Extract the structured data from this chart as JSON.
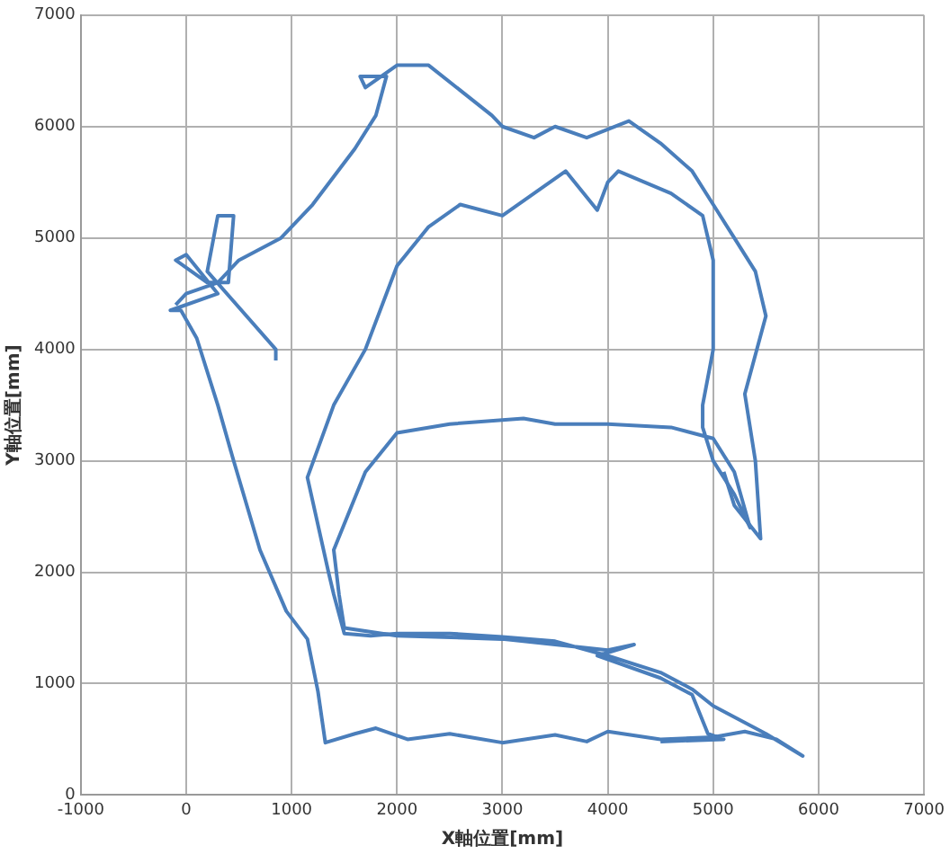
{
  "chart_data": {
    "type": "line",
    "xlabel": "X軸位置[mm]",
    "ylabel": "Y軸位置[mm]",
    "xlim": [
      -1000,
      7000
    ],
    "xticks": [
      -1000,
      0,
      1000,
      2000,
      3000,
      4000,
      5000,
      6000,
      7000
    ],
    "ylim": [
      0,
      7000
    ],
    "yticks": [
      0,
      1000,
      2000,
      3000,
      4000,
      5000,
      6000,
      7000
    ],
    "grid": true,
    "legend": false,
    "marker": "none",
    "line_style": "solid",
    "series": [
      {
        "color": "#4a7ebb",
        "x": [
          850,
          850,
          200,
          300,
          450,
          400,
          200,
          -100,
          0,
          300,
          -150,
          -50,
          100,
          300,
          450,
          700,
          950,
          1150,
          1250,
          1320,
          1600,
          1800,
          2100,
          2500,
          3000,
          3500,
          3800,
          4000,
          4500,
          5000,
          5300,
          5600,
          5850,
          5500,
          5000,
          4800,
          4500,
          4000,
          3500,
          3000,
          2500,
          2000,
          1750,
          1500,
          1400,
          1350,
          1150,
          1400,
          1700,
          2000,
          2300,
          2600,
          3000,
          3300,
          3600,
          3900,
          4000,
          4100,
          4600,
          4900,
          5000,
          5000,
          4900,
          4900,
          5000,
          5200,
          5300,
          5350,
          5200,
          5000,
          4600,
          4000,
          3500,
          3200,
          2500,
          2000,
          1700,
          1400,
          1450,
          1500,
          2000,
          3000,
          3500,
          4000,
          4250,
          3900,
          4500,
          4800,
          4950,
          5100,
          4500
        ],
        "values": [
          3900,
          4000,
          4700,
          5200,
          5200,
          4600,
          4600,
          4800,
          4850,
          4500,
          4350,
          4350,
          4100,
          3500,
          3000,
          2200,
          1650,
          1400,
          930,
          470,
          550,
          600,
          500,
          550,
          470,
          540,
          480,
          570,
          500,
          520,
          570,
          500,
          350,
          550,
          800,
          950,
          1100,
          1250,
          1380,
          1420,
          1450,
          1450,
          1430,
          1450,
          1800,
          2000,
          2850,
          3500,
          4000,
          4750,
          5100,
          5300,
          5200,
          5400,
          5600,
          5250,
          5500,
          5600,
          5400,
          5200,
          4800,
          4000,
          3500,
          3300,
          3000,
          2700,
          2500,
          2400,
          2900,
          3200,
          3300,
          3330,
          3330,
          3380,
          3330,
          3250,
          2900,
          2200,
          1800,
          1500,
          1430,
          1400,
          1350,
          1300,
          1350,
          1250,
          1050,
          900,
          550,
          500,
          480
        ]
      },
      {
        "color": "#4a7ebb",
        "x": [
          -100,
          0,
          300,
          500,
          900,
          1200,
          1600,
          1800,
          1900,
          1650,
          1700,
          2000,
          2300,
          2900,
          3000,
          3300,
          3500,
          3800,
          4200,
          4500,
          4800,
          5000,
          5200,
          5400,
          5500,
          5300,
          5400,
          5450,
          5200,
          5100
        ],
        "values": [
          4400,
          4500,
          4600,
          4800,
          5000,
          5300,
          5800,
          6100,
          6450,
          6450,
          6350,
          6550,
          6550,
          6100,
          6000,
          5900,
          6000,
          5900,
          6050,
          5850,
          5600,
          5300,
          5000,
          4700,
          4300,
          3600,
          3000,
          2300,
          2600,
          2900
        ]
      }
    ]
  }
}
